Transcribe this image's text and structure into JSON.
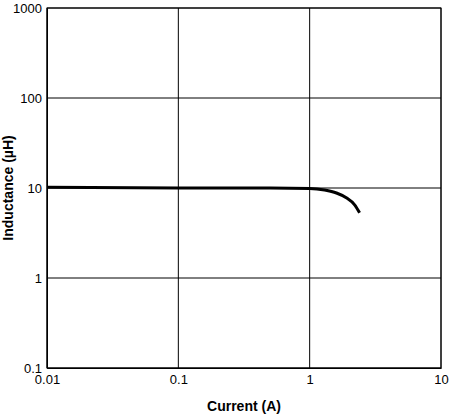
{
  "chart_data": {
    "type": "line",
    "x_label": "Current (A)",
    "y_label": "Inductance (µH)",
    "x": [
      0.01,
      0.1,
      0.5,
      1,
      1.3,
      1.6,
      1.9,
      2.2,
      2.4
    ],
    "values": [
      10.2,
      10,
      10,
      9.9,
      9.5,
      8.8,
      7.8,
      6.5,
      5.3
    ],
    "color": "#000000",
    "xlim": [
      0.01,
      10
    ],
    "xticks": [
      0.01,
      0.1,
      1,
      10
    ],
    "ylim": [
      0.1,
      1000
    ],
    "yticks": [
      0.1,
      1,
      10,
      100,
      1000
    ],
    "log": true,
    "grid": true
  }
}
